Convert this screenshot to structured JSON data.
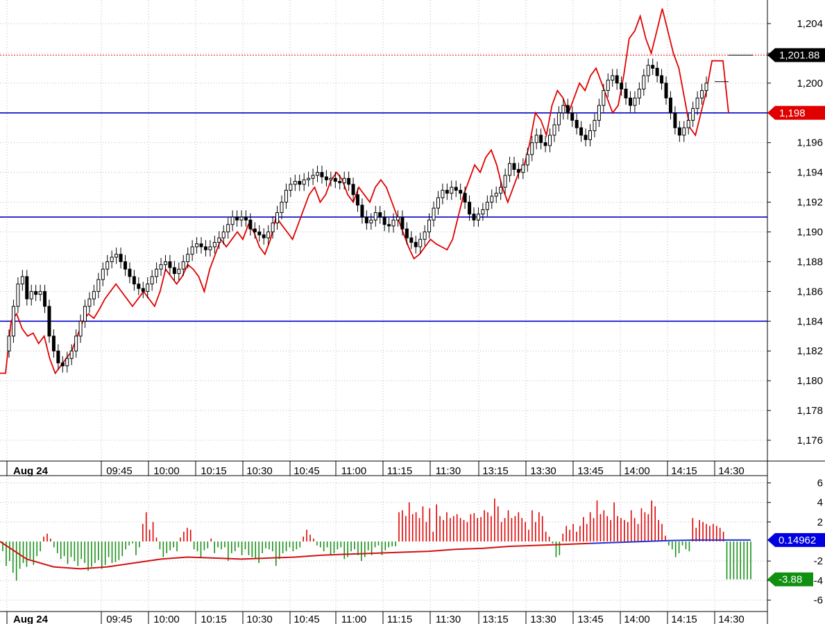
{
  "colors": {
    "price_line": "#e00000",
    "level_line": "#0000c8",
    "candle_up": "#ffffff",
    "candle_down": "#000000",
    "hist_up": "#e00000",
    "hist_down": "#189018",
    "signal": "#d01010",
    "signal_tail": "#2030d0",
    "grid": "#b8b8b8",
    "ref_dotted": "#e02020",
    "badge_black": "#000000",
    "badge_red": "#e00000",
    "badge_blue": "#0000e0",
    "badge_green": "#109010"
  },
  "chart_data": [
    {
      "type": "candlestick",
      "x_ticks": [
        "Aug 24",
        "09:45",
        "10:00",
        "10:15",
        "10:30",
        "10:45",
        "11:00",
        "11:15",
        "11:30",
        "13:15",
        "13:30",
        "13:45",
        "14:00",
        "14:15",
        "14:30"
      ],
      "y_ticks": [
        "1,204",
        "1,202",
        "1,200",
        "1,198",
        "1,196",
        "1,194",
        "1,192",
        "1,190",
        "1,188",
        "1,186",
        "1,184",
        "1,182",
        "1,180",
        "1,178",
        "1,176"
      ],
      "ylim": [
        1174.6,
        1205.4
      ],
      "grid": true,
      "horizontal_levels": [
        1198.0,
        1191.0,
        1184.0
      ],
      "reference_level": 1201.88,
      "price_badges": [
        {
          "label": "1,201.88",
          "value": 1201.88,
          "color": "black"
        },
        {
          "label": "1,198",
          "value": 1198.0,
          "color": "red"
        }
      ],
      "series": [
        {
          "type": "candlestick",
          "close": [
            1183.0,
            1185.0,
            1186.5,
            1187.0,
            1185.5,
            1186.0,
            1185.8,
            1186.0,
            1185.0,
            1183.0,
            1182.0,
            1181.2,
            1181.0,
            1181.5,
            1182.0,
            1183.0,
            1184.0,
            1185.0,
            1185.5,
            1186.0,
            1186.8,
            1187.5,
            1188.0,
            1188.3,
            1188.5,
            1188.0,
            1187.5,
            1187.0,
            1186.5,
            1186.2,
            1186.0,
            1186.5,
            1187.0,
            1187.5,
            1187.8,
            1188.0,
            1187.6,
            1187.2,
            1187.5,
            1188.0,
            1188.5,
            1189.0,
            1189.2,
            1189.0,
            1188.8,
            1189.0,
            1189.3,
            1189.6,
            1190.0,
            1190.5,
            1191.0,
            1190.8,
            1191.0,
            1190.8,
            1190.2,
            1190.0,
            1189.8,
            1189.6,
            1190.0,
            1190.6,
            1191.3,
            1192.0,
            1192.8,
            1193.2,
            1193.4,
            1193.2,
            1193.5,
            1193.6,
            1193.8,
            1194.0,
            1193.7,
            1193.5,
            1193.6,
            1193.4,
            1193.3,
            1193.6,
            1193.2,
            1192.5,
            1191.8,
            1191.0,
            1190.6,
            1190.8,
            1191.3,
            1191.0,
            1190.5,
            1190.4,
            1190.8,
            1191.0,
            1190.2,
            1189.6,
            1189.3,
            1189.0,
            1189.5,
            1190.0,
            1190.8,
            1191.6,
            1192.3,
            1192.8,
            1192.6,
            1193.0,
            1192.8,
            1192.6,
            1192.0,
            1191.2,
            1190.8,
            1191.2,
            1191.5,
            1192.0,
            1192.4,
            1192.6,
            1193.0,
            1193.8,
            1194.6,
            1194.2,
            1194.0,
            1194.5,
            1195.2,
            1196.0,
            1196.5,
            1196.0,
            1195.8,
            1196.5,
            1197.2,
            1198.0,
            1198.5,
            1198.0,
            1197.5,
            1197.0,
            1196.5,
            1196.2,
            1196.8,
            1197.5,
            1198.5,
            1199.5,
            1200.2,
            1200.5,
            1200.0,
            1199.6,
            1199.0,
            1198.5,
            1199.0,
            1199.6,
            1200.5,
            1201.2,
            1201.0,
            1200.5,
            1200.0,
            1199.0,
            1198.0,
            1197.0,
            1196.5,
            1197.0,
            1197.5,
            1198.3,
            1199.0,
            1199.5,
            1200.0
          ],
          "open": [
            1182.0,
            1183.0,
            1185.0,
            1186.5,
            1187.0,
            1185.5,
            1186.0,
            1185.8,
            1186.0,
            1185.0,
            1183.0,
            1182.0,
            1181.2,
            1181.0,
            1181.5,
            1182.0,
            1183.0,
            1184.0,
            1185.0,
            1185.5,
            1186.0,
            1186.8,
            1187.5,
            1188.0,
            1188.3,
            1188.5,
            1188.0,
            1187.5,
            1187.0,
            1186.5,
            1186.2,
            1186.0,
            1186.5,
            1187.0,
            1187.5,
            1187.8,
            1188.0,
            1187.6,
            1187.2,
            1187.5,
            1188.0,
            1188.5,
            1189.0,
            1189.2,
            1189.0,
            1188.8,
            1189.0,
            1189.3,
            1189.6,
            1190.0,
            1190.5,
            1191.0,
            1190.8,
            1191.0,
            1190.8,
            1190.2,
            1190.0,
            1189.8,
            1189.6,
            1190.0,
            1190.6,
            1191.3,
            1192.0,
            1192.8,
            1193.2,
            1193.4,
            1193.2,
            1193.5,
            1193.6,
            1193.8,
            1194.0,
            1193.7,
            1193.5,
            1193.6,
            1193.4,
            1193.3,
            1193.6,
            1193.2,
            1192.5,
            1191.8,
            1191.0,
            1190.6,
            1190.8,
            1191.3,
            1191.0,
            1190.5,
            1190.4,
            1190.8,
            1191.0,
            1190.2,
            1189.6,
            1189.3,
            1189.0,
            1189.5,
            1190.0,
            1190.8,
            1191.6,
            1192.3,
            1192.8,
            1192.6,
            1193.0,
            1192.8,
            1192.6,
            1192.0,
            1191.2,
            1190.8,
            1191.2,
            1191.5,
            1192.0,
            1192.4,
            1192.6,
            1193.0,
            1193.8,
            1194.6,
            1194.2,
            1194.0,
            1194.5,
            1195.2,
            1196.0,
            1196.5,
            1196.0,
            1195.8,
            1196.5,
            1197.2,
            1198.0,
            1198.5,
            1198.0,
            1197.5,
            1197.0,
            1196.5,
            1196.2,
            1196.8,
            1197.5,
            1198.5,
            1199.5,
            1200.2,
            1200.5,
            1200.0,
            1199.6,
            1199.0,
            1198.5,
            1199.0,
            1199.6,
            1200.5,
            1201.2,
            1201.0,
            1200.5,
            1200.0,
            1199.0,
            1198.0,
            1197.0,
            1196.5,
            1197.0,
            1197.5,
            1198.3,
            1199.0,
            1199.5
          ]
        },
        {
          "type": "line",
          "values": [
            1180.5,
            1184.0,
            1184.5,
            1183.5,
            1183.0,
            1183.2,
            1182.5,
            1183.0,
            1181.5,
            1180.5,
            1181.0,
            1181.5,
            1182.0,
            1183.0,
            1184.0,
            1184.5,
            1184.2,
            1184.8,
            1185.5,
            1186.0,
            1186.5,
            1186.0,
            1185.5,
            1185.0,
            1185.5,
            1186.0,
            1185.5,
            1185.0,
            1186.0,
            1187.5,
            1187.0,
            1186.5,
            1187.0,
            1187.8,
            1187.5,
            1187.0,
            1186.0,
            1187.5,
            1188.5,
            1189.5,
            1189.0,
            1189.5,
            1190.0,
            1189.5,
            1190.5,
            1190.0,
            1189.0,
            1188.5,
            1189.5,
            1191.0,
            1190.5,
            1190.0,
            1189.5,
            1190.5,
            1191.5,
            1192.5,
            1193.0,
            1192.0,
            1192.5,
            1193.5,
            1194.0,
            1193.5,
            1192.5,
            1192.0,
            1193.0,
            1192.5,
            1192.0,
            1193.0,
            1193.5,
            1193.0,
            1192.0,
            1191.0,
            1190.0,
            1189.0,
            1188.2,
            1188.5,
            1189.0,
            1189.5,
            1189.2,
            1189.0,
            1188.8,
            1189.5,
            1191.0,
            1192.5,
            1193.5,
            1194.5,
            1194.0,
            1195.0,
            1195.5,
            1194.5,
            1193.0,
            1192.0,
            1193.0,
            1194.0,
            1194.5,
            1196.0,
            1198.0,
            1197.5,
            1196.5,
            1198.5,
            1199.5,
            1199.0,
            1198.0,
            1199.0,
            1200.0,
            1199.5,
            1200.5,
            1201.0,
            1200.0,
            1199.0,
            1198.0,
            1198.5,
            1200.5,
            1203.0,
            1203.5,
            1204.5,
            1203.0,
            1202.0,
            1203.5,
            1205.0,
            1203.5,
            1202.0,
            1201.0,
            1199.0,
            1197.0,
            1196.5,
            1198.0,
            1199.5,
            1201.5,
            1201.5,
            1201.5,
            1198.0
          ]
        }
      ]
    },
    {
      "type": "bar",
      "x_ticks": [
        "Aug 24",
        "09:45",
        "10:00",
        "10:15",
        "10:30",
        "10:45",
        "11:00",
        "11:15",
        "11:30",
        "13:15",
        "13:30",
        "13:45",
        "14:00",
        "14:15",
        "14:30"
      ],
      "y_ticks": [
        "6",
        "4",
        "2",
        "-2",
        "-4",
        "-6"
      ],
      "ylim": [
        -7,
        7
      ],
      "value_badges": [
        {
          "label": "0.14962",
          "value": 0.14962,
          "color": "blue"
        },
        {
          "label": "-3.88",
          "value": -3.88,
          "color": "green"
        }
      ],
      "series": [
        {
          "type": "bar",
          "values": [
            -1.0,
            -2.5,
            -2.0,
            -3.2,
            -4.0,
            -2.8,
            -2.2,
            -2.6,
            -1.8,
            -2.4,
            -1.5,
            -1.0,
            0.5,
            0.8,
            0.3,
            -0.6,
            -1.2,
            -1.8,
            -1.5,
            -2.3,
            -1.6,
            -2.0,
            -2.5,
            -1.8,
            -2.2,
            -3.0,
            -2.6,
            -2.2,
            -1.9,
            -2.8,
            -2.4,
            -1.6,
            -2.2,
            -2.1,
            -1.9,
            -1.5,
            -0.8,
            -0.4,
            -0.2,
            -1.4,
            -0.6,
            1.8,
            3.0,
            1.2,
            2.0,
            0.4,
            -0.8,
            -1.6,
            -1.2,
            -0.9,
            -0.6,
            -1.0,
            0.4,
            1.0,
            1.4,
            1.2,
            -0.8,
            -1.0,
            -1.6,
            -0.9,
            -0.7,
            0.3,
            -1.2,
            -0.6,
            -0.8,
            -0.6,
            -2.0,
            -1.2,
            -1.0,
            -0.6,
            -1.4,
            -0.8,
            -1.4,
            -1.6,
            -1.8,
            -2.2,
            -1.2,
            -0.7,
            -0.8,
            -1.0,
            -2.5,
            -1.8,
            -1.2,
            -1.0,
            -0.6,
            -1.0,
            -0.8,
            -0.6,
            0.5,
            1.2,
            0.7,
            0.3,
            -0.4,
            -0.6,
            -1.0,
            -0.6,
            -1.4,
            -1.2,
            -0.8,
            -0.6,
            -1.8,
            -1.6,
            -1.0,
            -0.8,
            -1.4,
            -2.0,
            -1.6,
            -0.9,
            -1.4,
            -0.6,
            -0.4,
            -1.4,
            -0.9,
            -0.6,
            -0.5,
            -0.5,
            3.0,
            3.2,
            2.6,
            4.0,
            2.8,
            3.0,
            2.4,
            3.6,
            2.0,
            3.4,
            1.0,
            3.8,
            2.6,
            2.2,
            3.0,
            2.4,
            2.6,
            2.8,
            2.4,
            2.2,
            2.0,
            2.8,
            2.9,
            2.4,
            2.5,
            3.2,
            3.0,
            2.6,
            4.4,
            3.6,
            2.0,
            2.4,
            3.2,
            2.4,
            2.6,
            3.0,
            2.4,
            2.0,
            1.2,
            3.2,
            2.0,
            3.0,
            2.6,
            1.0,
            0.5,
            -0.2,
            -1.6,
            -1.4,
            0.8,
            1.6,
            1.2,
            1.8,
            1.0,
            1.6,
            2.5,
            1.8,
            3.0,
            2.4,
            4.2,
            2.8,
            3.2,
            2.6,
            2.2,
            4.0,
            2.6,
            2.4,
            2.2,
            2.0,
            3.2,
            2.4,
            1.8,
            3.4,
            3.0,
            2.8,
            4.2,
            3.6,
            2.2,
            1.8,
            0.6,
            -0.4,
            -0.8,
            -1.6,
            -1.2,
            -0.4,
            -0.8,
            -1.0,
            2.4,
            1.4,
            2.2,
            2.0,
            1.8,
            1.6,
            1.8,
            1.6,
            1.4,
            1.0,
            -3.88,
            -3.88,
            -3.88,
            -3.88,
            -3.88,
            -3.88,
            -3.88,
            -3.88
          ]
        },
        {
          "type": "line",
          "values": [
            0.0,
            -1.8,
            -2.6,
            -2.8,
            -2.6,
            -2.2,
            -1.8,
            -1.6,
            -1.7,
            -1.8,
            -1.7,
            -1.6,
            -1.4,
            -1.3,
            -1.2,
            -1.1,
            -1.0,
            -0.8,
            -0.7,
            -0.5,
            -0.4,
            -0.3,
            -0.2,
            -0.1,
            0.0,
            0.1,
            0.15,
            0.15,
            0.14962
          ]
        }
      ]
    }
  ]
}
